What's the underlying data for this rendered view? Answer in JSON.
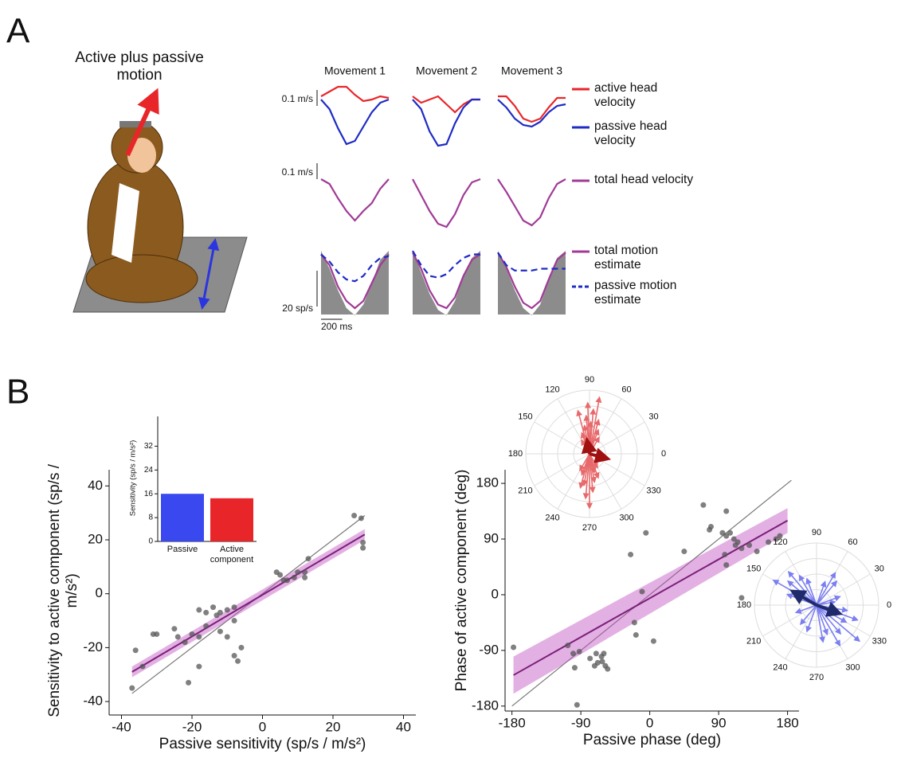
{
  "panels": {
    "a": "A",
    "b": "B"
  },
  "illustration": {
    "title": "Active plus passive motion"
  },
  "chart_data": [
    {
      "type": "traces",
      "x": [
        0,
        80,
        160,
        240,
        320,
        400,
        480,
        560,
        640
      ],
      "movements": [
        "Movement 1",
        "Movement 2",
        "Movement 3"
      ],
      "scale_bars": [
        {
          "value": 0.1,
          "label": "0.1 m/s"
        },
        {
          "value": 0.1,
          "label": "0.1 m/s"
        },
        {
          "value": 20,
          "label": "20 sp/s"
        },
        {
          "value": 200,
          "label": "200 ms"
        }
      ],
      "series": [
        {
          "name": "active head velocity",
          "color": "#e8262a",
          "row": 1,
          "values": [
            [
              0.02,
              0.05,
              0.08,
              0.08,
              0.03,
              -0.01,
              0.0,
              0.02,
              0.01
            ],
            [
              0.02,
              -0.02,
              0.0,
              0.02,
              -0.03,
              -0.08,
              -0.03,
              0.0,
              0.0
            ],
            [
              0.02,
              0.02,
              -0.04,
              -0.12,
              -0.14,
              -0.12,
              -0.05,
              0.01,
              0.01
            ]
          ]
        },
        {
          "name": "passive head velocity",
          "color": "#1f2bc4",
          "row": 1,
          "values": [
            [
              0.0,
              -0.06,
              -0.18,
              -0.28,
              -0.26,
              -0.17,
              -0.08,
              -0.02,
              0.0
            ],
            [
              0.0,
              -0.06,
              -0.2,
              -0.29,
              -0.28,
              -0.15,
              -0.05,
              0.0,
              0.0
            ],
            [
              0.0,
              -0.05,
              -0.12,
              -0.16,
              -0.17,
              -0.14,
              -0.08,
              -0.04,
              -0.03
            ]
          ]
        },
        {
          "name": "total head velocity",
          "color": "#a03a96",
          "row": 2,
          "values": [
            [
              0.0,
              -0.03,
              -0.12,
              -0.2,
              -0.26,
              -0.2,
              -0.15,
              -0.06,
              0.0
            ],
            [
              0.0,
              -0.1,
              -0.2,
              -0.28,
              -0.3,
              -0.22,
              -0.1,
              -0.02,
              0.0
            ],
            [
              0.0,
              -0.08,
              -0.17,
              -0.26,
              -0.29,
              -0.24,
              -0.12,
              -0.03,
              0.0
            ]
          ]
        },
        {
          "color": "#8c8c8c",
          "row": 3,
          "fill": true,
          "values": [
            [
              0,
              -10,
              -22,
              -32,
              -36,
              -30,
              -18,
              -5,
              0
            ],
            [
              0,
              -12,
              -24,
              -33,
              -36,
              -28,
              -14,
              -4,
              0
            ],
            [
              0,
              -10,
              -22,
              -32,
              -36,
              -30,
              -16,
              -4,
              0
            ]
          ]
        },
        {
          "name": "total motion estimate",
          "color": "#a03a96",
          "row": 3,
          "values": [
            [
              -2,
              -8,
              -20,
              -28,
              -32,
              -28,
              -18,
              -8,
              -2
            ],
            [
              -1,
              -10,
              -22,
              -30,
              -32,
              -26,
              -14,
              -5,
              -2
            ],
            [
              -1,
              -9,
              -20,
              -29,
              -32,
              -28,
              -16,
              -5,
              -1
            ]
          ]
        },
        {
          "name": "passive motion estimate",
          "color": "#1f2bc4",
          "row": 3,
          "dashed": true,
          "values": [
            [
              -2,
              -6,
              -12,
              -16,
              -17,
              -14,
              -8,
              -4,
              -3
            ],
            [
              0,
              -8,
              -14,
              -15,
              -13,
              -8,
              -4,
              -2,
              -2
            ],
            [
              -1,
              -8,
              -11,
              -11,
              -11,
              -10,
              -10,
              -10,
              -10
            ]
          ]
        }
      ]
    },
    {
      "type": "scatter",
      "xlabel": "Passive sensitivity (sp/s / m/s²)",
      "ylabel": "Sensitivity to active component (sp/s / m/s²)",
      "xlim": [
        -43.5,
        43.5
      ],
      "ylim": [
        -45,
        46
      ],
      "xticks": [
        -40,
        -20,
        0,
        20,
        40
      ],
      "yticks": [
        -40,
        -20,
        0,
        20,
        40
      ],
      "color": "#555555",
      "x": [
        26,
        28,
        28.5,
        28.5,
        13,
        12,
        12,
        10,
        9,
        4,
        5,
        6,
        7,
        -8,
        -10,
        -8,
        -10,
        -6,
        -8,
        -7,
        -12,
        -12,
        -14,
        -16,
        -18,
        -16,
        -18,
        -20,
        -22,
        -24,
        -30,
        -31,
        -18,
        -21,
        -34,
        -36,
        -37,
        -13,
        -25
      ],
      "y": [
        29,
        28,
        19,
        17,
        13,
        8,
        6,
        8,
        6,
        8,
        7,
        5,
        5,
        -5,
        -6,
        -10,
        -16,
        -20,
        -23,
        -25,
        -14,
        -7,
        -5,
        -7,
        -6,
        -12,
        -16,
        -15,
        -18,
        -16,
        -15,
        -15,
        -27,
        -33,
        -27,
        -21,
        -35,
        -8,
        -13
      ],
      "fit": {
        "x": [
          -37,
          29
        ],
        "y": [
          -29,
          22
        ],
        "ci_lower": [
          -31,
          20
        ],
        "ci_upper": [
          -27,
          24
        ]
      },
      "unity": {
        "x": [
          -37,
          29
        ],
        "y": [
          -37,
          29
        ]
      }
    },
    {
      "type": "bar",
      "ylabel": "Sensitivity (sp/s / m/s²)",
      "categories": [
        "Passive",
        "Active component"
      ],
      "values": [
        16,
        14.5
      ],
      "colors": [
        "#3a48f0",
        "#e8262a"
      ],
      "ylim": [
        0,
        42
      ],
      "yticks": [
        0,
        8,
        16,
        24,
        32
      ]
    },
    {
      "type": "scatter",
      "xlabel": "Passive phase (deg)",
      "ylabel": "Phase of active component (deg)",
      "xlim": [
        -189,
        195
      ],
      "ylim": [
        -188,
        202
      ],
      "xticks": [
        -180,
        -90,
        0,
        90,
        180
      ],
      "yticks": [
        -180,
        -90,
        0,
        90,
        180
      ],
      "color": "#555555",
      "x": [
        -178,
        -107,
        -98,
        -100,
        -92,
        -95,
        -78,
        -72,
        -68,
        -62,
        -58,
        -60,
        -63,
        -55,
        -70,
        -20,
        -18,
        -10,
        -25,
        -5,
        5,
        45,
        70,
        80,
        78,
        95,
        100,
        105,
        110,
        115,
        112,
        120,
        98,
        100,
        100,
        120,
        130,
        140,
        155,
        165,
        170
      ],
      "y": [
        -85,
        -82,
        -118,
        -95,
        -92,
        -178,
        -103,
        -115,
        -110,
        -108,
        -115,
        -95,
        -100,
        -120,
        -95,
        -45,
        -65,
        5,
        65,
        100,
        -75,
        70,
        145,
        110,
        105,
        100,
        95,
        100,
        90,
        85,
        80,
        75,
        65,
        48,
        135,
        -5,
        80,
        70,
        85,
        90,
        95
      ],
      "fit": {
        "x": [
          -178,
          180
        ],
        "y": [
          -130,
          120
        ],
        "ci_lower": [
          -160,
          100
        ],
        "ci_upper": [
          -100,
          140
        ]
      },
      "unity": {
        "x": [
          -180,
          185
        ],
        "y": [
          -180,
          185
        ]
      }
    },
    {
      "type": "polar",
      "thetaticks": [
        0,
        30,
        60,
        90,
        120,
        150,
        180,
        210,
        240,
        270,
        300,
        330
      ],
      "color": "#e8696b",
      "mean_color": "#a01010",
      "angles": [
        80,
        85,
        88,
        92,
        95,
        100,
        105,
        75,
        70,
        110,
        260,
        265,
        270,
        275,
        280,
        255,
        285,
        250,
        290,
        60,
        120,
        240,
        300
      ],
      "lengths": [
        0.9,
        0.7,
        0.5,
        0.8,
        0.6,
        0.45,
        0.7,
        0.55,
        0.4,
        0.35,
        0.5,
        0.7,
        0.85,
        0.6,
        0.45,
        0.55,
        0.3,
        0.35,
        0.4,
        0.3,
        0.25,
        0.3,
        0.25
      ],
      "mean_angles": [
        345,
        100
      ],
      "mean_lengths": [
        0.3,
        0.22
      ]
    },
    {
      "type": "polar",
      "thetaticks": [
        0,
        30,
        60,
        90,
        120,
        150,
        180,
        210,
        240,
        270,
        300,
        330
      ],
      "color": "#7b7ff0",
      "mean_color": "#1f2a6b",
      "angles": [
        130,
        140,
        150,
        160,
        120,
        110,
        60,
        50,
        70,
        300,
        310,
        320,
        330,
        340,
        290,
        280,
        250,
        230,
        200,
        20,
        10,
        350
      ],
      "lengths": [
        0.7,
        0.6,
        0.8,
        0.5,
        0.55,
        0.45,
        0.6,
        0.5,
        0.4,
        0.75,
        0.6,
        0.9,
        0.55,
        0.7,
        0.5,
        0.6,
        0.45,
        0.4,
        0.35,
        0.4,
        0.3,
        0.5
      ],
      "mean_angles": [
        150,
        340
      ],
      "mean_lengths": [
        0.45,
        0.4
      ]
    }
  ]
}
